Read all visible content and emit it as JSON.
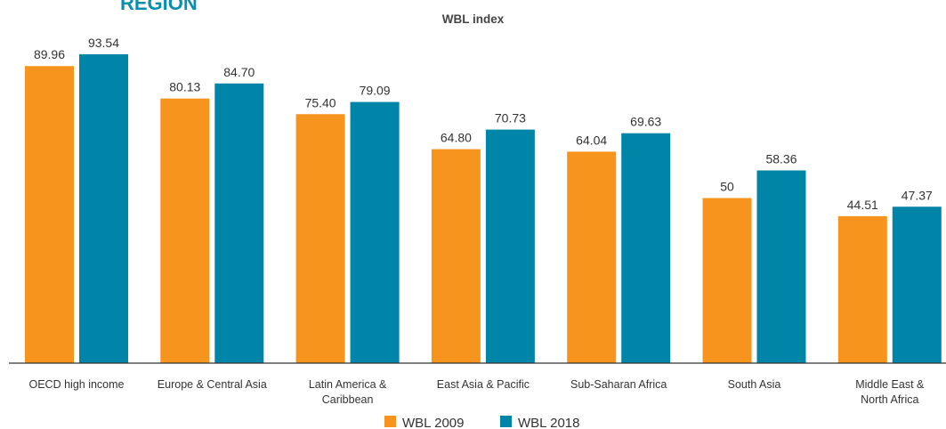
{
  "chart_data": {
    "type": "bar",
    "title": "REGION",
    "subtitle": "WBL index",
    "categories": [
      "OECD high income",
      "Europe & Central Asia",
      "Latin America & Caribbean",
      "East Asia & Pacific",
      "Sub-Saharan Africa",
      "South Asia",
      "Middle East & North Africa"
    ],
    "series": [
      {
        "name": "WBL 2009",
        "color": "#f7941d",
        "values": [
          89.96,
          80.13,
          75.4,
          64.8,
          64.04,
          50,
          44.51
        ],
        "value_labels": [
          "89.96",
          "80.13",
          "75.40",
          "64.80",
          "64.04",
          "50",
          "44.51"
        ]
      },
      {
        "name": "WBL 2018",
        "color": "#0085a8",
        "values": [
          93.54,
          84.7,
          79.09,
          70.73,
          69.63,
          58.36,
          47.37
        ],
        "value_labels": [
          "93.54",
          "84.70",
          "79.09",
          "70.73",
          "69.63",
          "58.36",
          "47.37"
        ]
      }
    ],
    "ylim": [
      0,
      100
    ],
    "legend": "bottom"
  }
}
